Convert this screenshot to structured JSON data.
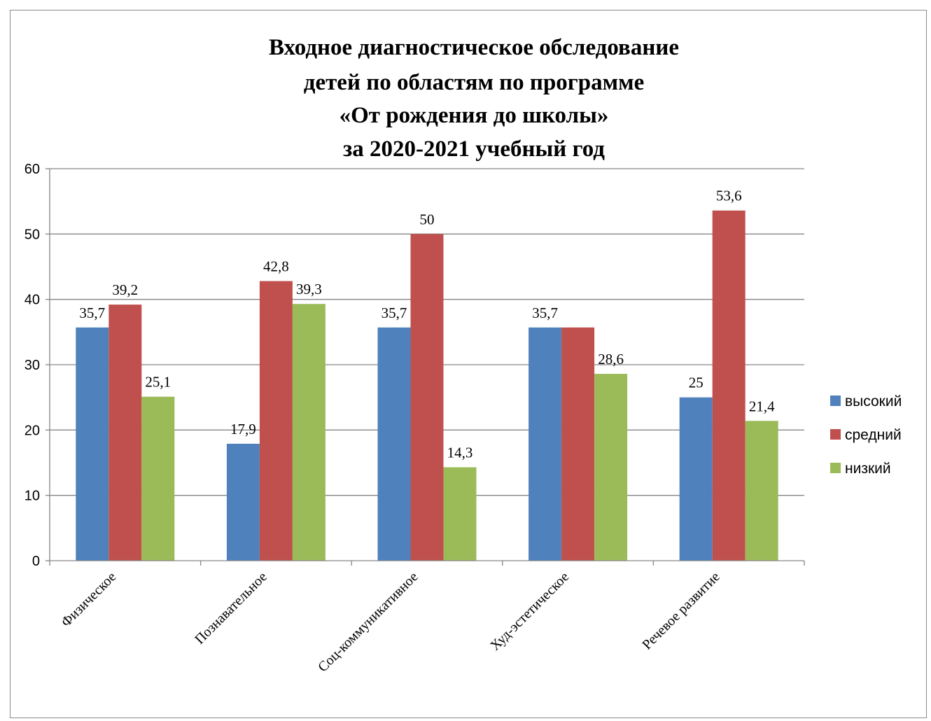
{
  "chart_data": {
    "type": "bar",
    "title_lines": [
      "Входное диагностическое обследование",
      "детей по областям по программе",
      "«От рождения до школы»",
      "за 2020-2021 учебный год"
    ],
    "categories": [
      "Физическое",
      "Познавательное",
      "Соц-коммуникативное",
      "Худ-эстетическое",
      "Речевое развитие"
    ],
    "series": [
      {
        "name": "высокий",
        "color": "#4F81BD",
        "values": [
          35.7,
          17.9,
          35.7,
          35.7,
          25
        ],
        "labels": [
          "35,7",
          "17,9",
          "35,7",
          "35,7",
          "25"
        ]
      },
      {
        "name": "средний",
        "color": "#C0504D",
        "values": [
          39.2,
          42.8,
          50,
          35.7,
          53.6
        ],
        "labels": [
          "39,2",
          "42,8",
          "50",
          "",
          "53,6"
        ]
      },
      {
        "name": "низкий",
        "color": "#9BBB59",
        "values": [
          25.1,
          39.3,
          14.3,
          28.6,
          21.4
        ],
        "labels": [
          "25,1",
          "39,3",
          "14,3",
          "28,6",
          "21,4"
        ]
      }
    ],
    "yticks": [
      "0",
      "10",
      "20",
      "30",
      "40",
      "50",
      "60"
    ],
    "ylim": [
      0,
      60
    ],
    "grid": true,
    "legend_position": "right"
  }
}
